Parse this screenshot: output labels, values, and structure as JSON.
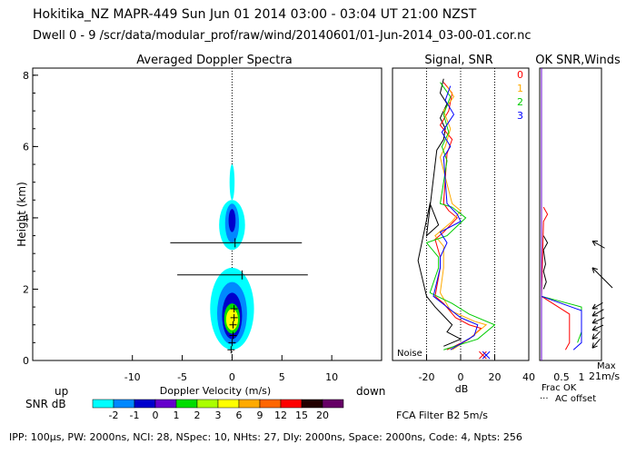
{
  "header": {
    "title_line": "Hokitika_NZ   MAPR-449   Sun Jun 01 2014 03:00 - 03:04 UT 21:00 NZST",
    "dwell_line": "Dwell  0 - 9  /scr/data/modular_prof/raw/wind/20140601/01-Jun-2014_03-00-01.cor.nc"
  },
  "footer": {
    "params": "IPP: 100µs,  PW: 2000ns,  NCI: 28,  NSpec: 10, NHts: 27,  Dly: 2000ns,  Space: 2000ns,  Code: 4,  Npts: 256",
    "fca_filter": "FCA Filter B2   5m/s"
  },
  "colors": {
    "snr_scale": [
      "#00ffff",
      "#0088ff",
      "#0000cc",
      "#6600cc",
      "#00dd00",
      "#aaff00",
      "#ffff00",
      "#ffaa00",
      "#ff6600",
      "#ff0000",
      "#220000",
      "#660066"
    ],
    "dwell_colors": [
      "#ff0000",
      "#ffaa00",
      "#00cc00",
      "#0000ff"
    ]
  },
  "chart_data": [
    {
      "type": "heatmap",
      "title": "Averaged Doppler Spectra",
      "xlabel": "Doppler Velocity (m/s)",
      "ylabel": "Height (km)",
      "xlim": [
        -20,
        15
      ],
      "ylim": [
        0,
        8.2
      ],
      "x_ticks": [
        -10,
        -5,
        0,
        5,
        10
      ],
      "y_ticks": [
        0,
        2,
        4,
        6,
        8
      ],
      "direction_left": "up",
      "direction_right": "down",
      "colorbar_label": "SNR dB",
      "colorbar_ticks": [
        "-2",
        "-1",
        "0",
        "1",
        "2",
        "3",
        "6",
        "9",
        "12",
        "15",
        "20"
      ],
      "error_bars": [
        {
          "height_km": 3.3,
          "center": 0.3,
          "min": -6.2,
          "max": 7.0
        },
        {
          "height_km": 2.4,
          "center": 1.0,
          "min": -5.5,
          "max": 7.6
        }
      ],
      "peak_markers": [
        {
          "height_km": 1.45,
          "velocity": 0.2
        },
        {
          "height_km": 1.2,
          "velocity": 0.2
        },
        {
          "height_km": 1.0,
          "velocity": 0.1
        },
        {
          "height_km": 0.7,
          "velocity": 0.1
        },
        {
          "height_km": 0.5,
          "velocity": 0.0
        },
        {
          "height_km": 0.3,
          "velocity": -0.1
        }
      ]
    },
    {
      "type": "line",
      "title": "Signal, SNR",
      "xlabel": "dB",
      "xlim": [
        -40,
        40
      ],
      "x_ticks": [
        -20,
        0,
        20,
        40
      ],
      "ylim": [
        0,
        8.2
      ],
      "noise_label": "Noise",
      "series": [
        {
          "name": "Signal",
          "color": "#000000",
          "points": [
            [
              -10,
              7.9
            ],
            [
              -12,
              7.5
            ],
            [
              -8,
              7.2
            ],
            [
              -12,
              6.8
            ],
            [
              -9,
              6.5
            ],
            [
              -10,
              6.2
            ],
            [
              -14,
              5.9
            ],
            [
              -20,
              3.5
            ],
            [
              -13,
              3.8
            ],
            [
              -18,
              4.4
            ],
            [
              -25,
              2.8
            ],
            [
              -20,
              1.8
            ],
            [
              -15,
              1.5
            ],
            [
              -5,
              1.0
            ],
            [
              -8,
              0.8
            ],
            [
              0,
              0.6
            ],
            [
              -10,
              0.4
            ]
          ]
        },
        {
          "name": "SNR dwell 0",
          "color": "#ff0000",
          "points": [
            [
              -10,
              7.8
            ],
            [
              -5,
              7.5
            ],
            [
              -7,
              7.0
            ],
            [
              -12,
              6.6
            ],
            [
              -5,
              6.2
            ],
            [
              -8,
              5.8
            ],
            [
              -10,
              4.4
            ],
            [
              -7,
              4.2
            ],
            [
              -2,
              4.0
            ],
            [
              -10,
              3.6
            ],
            [
              -15,
              3.4
            ],
            [
              -12,
              2.9
            ],
            [
              -12,
              2.6
            ],
            [
              -15,
              1.8
            ],
            [
              -10,
              1.6
            ],
            [
              -3,
              1.2
            ],
            [
              5,
              1.0
            ],
            [
              12,
              0.9
            ],
            [
              5,
              0.6
            ],
            [
              -8,
              0.3
            ]
          ]
        },
        {
          "name": "SNR dwell 1",
          "color": "#ffaa00",
          "points": [
            [
              -8,
              7.7
            ],
            [
              -4,
              7.4
            ],
            [
              -10,
              7.0
            ],
            [
              -6,
              6.5
            ],
            [
              -9,
              6.0
            ],
            [
              -12,
              5.7
            ],
            [
              -5,
              4.4
            ],
            [
              0,
              4.2
            ],
            [
              -5,
              3.9
            ],
            [
              -15,
              3.5
            ],
            [
              -10,
              3.2
            ],
            [
              -10,
              2.9
            ],
            [
              -10,
              2.6
            ],
            [
              -12,
              1.9
            ],
            [
              -6,
              1.4
            ],
            [
              8,
              1.1
            ],
            [
              15,
              1.0
            ],
            [
              5,
              0.6
            ],
            [
              -5,
              0.3
            ]
          ]
        },
        {
          "name": "SNR dwell 2",
          "color": "#00cc00",
          "points": [
            [
              -12,
              7.8
            ],
            [
              -6,
              7.4
            ],
            [
              -10,
              6.9
            ],
            [
              -7,
              6.4
            ],
            [
              -11,
              6.0
            ],
            [
              -8,
              5.6
            ],
            [
              -12,
              4.4
            ],
            [
              -5,
              4.3
            ],
            [
              3,
              4.0
            ],
            [
              -8,
              3.5
            ],
            [
              -20,
              3.3
            ],
            [
              -13,
              2.9
            ],
            [
              -13,
              2.6
            ],
            [
              -18,
              1.9
            ],
            [
              -5,
              1.6
            ],
            [
              5,
              1.3
            ],
            [
              20,
              1.0
            ],
            [
              10,
              0.6
            ],
            [
              -10,
              0.3
            ]
          ]
        },
        {
          "name": "SNR dwell 3",
          "color": "#0000ff",
          "points": [
            [
              -6,
              7.7
            ],
            [
              -9,
              7.3
            ],
            [
              -4,
              6.9
            ],
            [
              -11,
              6.4
            ],
            [
              -6,
              6.0
            ],
            [
              -10,
              5.7
            ],
            [
              -8,
              4.4
            ],
            [
              -2,
              4.1
            ],
            [
              0,
              3.9
            ],
            [
              -12,
              3.6
            ],
            [
              -8,
              3.3
            ],
            [
              -12,
              2.9
            ],
            [
              -12,
              2.6
            ],
            [
              -16,
              1.8
            ],
            [
              -8,
              1.5
            ],
            [
              0,
              1.2
            ],
            [
              10,
              1.0
            ],
            [
              8,
              0.7
            ],
            [
              -6,
              0.3
            ]
          ]
        }
      ],
      "markers": [
        {
          "x": 13,
          "height_km": 0.15,
          "symbol": "x",
          "color": "#ff0000"
        },
        {
          "x": 15,
          "height_km": 0.15,
          "symbol": "x",
          "color": "#0000ff"
        }
      ]
    },
    {
      "type": "line",
      "title": "OK SNR,Winds",
      "legend": [
        "0",
        "1",
        "2",
        "3"
      ],
      "xlabel": "Frac OK",
      "x_ticks": [
        "0.5",
        "1"
      ],
      "ac_offset_label": "AC offset",
      "wind_max_label": "Max",
      "wind_max_value": "21m/s",
      "series": [
        {
          "name": "OK black",
          "color": "#000000",
          "points": [
            [
              0.05,
              3.5
            ],
            [
              0.15,
              3.3
            ],
            [
              0.05,
              3.1
            ],
            [
              0.1,
              2.7
            ],
            [
              0.05,
              2.5
            ],
            [
              0.12,
              2.2
            ],
            [
              0.05,
              2.0
            ]
          ]
        },
        {
          "name": "OK red",
          "color": "#ff0000",
          "points": [
            [
              0.05,
              4.3
            ],
            [
              0.15,
              4.1
            ],
            [
              0.05,
              3.9
            ],
            [
              0.0,
              1.8
            ],
            [
              0.7,
              1.3
            ],
            [
              0.7,
              0.5
            ],
            [
              0.6,
              0.3
            ]
          ]
        },
        {
          "name": "OK green",
          "color": "#00cc00",
          "points": [
            [
              0.0,
              1.8
            ],
            [
              1.0,
              1.5
            ],
            [
              1.0,
              0.8
            ],
            [
              0.9,
              0.5
            ]
          ]
        },
        {
          "name": "OK blue",
          "color": "#0000ff",
          "points": [
            [
              0.0,
              1.8
            ],
            [
              1.0,
              1.4
            ],
            [
              1.0,
              0.5
            ],
            [
              0.8,
              0.3
            ]
          ]
        }
      ],
      "wind_barbs": [
        {
          "height_km": 3.35,
          "direction_deg": 120,
          "speed_ms": 8
        },
        {
          "height_km": 2.6,
          "direction_deg": 135,
          "speed_ms": 21
        },
        {
          "height_km": 1.45,
          "direction_deg": 60,
          "speed_ms": 6
        },
        {
          "height_km": 1.25,
          "direction_deg": 60,
          "speed_ms": 7
        },
        {
          "height_km": 1.05,
          "direction_deg": 65,
          "speed_ms": 7
        },
        {
          "height_km": 0.85,
          "direction_deg": 65,
          "speed_ms": 6
        },
        {
          "height_km": 0.6,
          "direction_deg": 45,
          "speed_ms": 5
        },
        {
          "height_km": 0.35,
          "direction_deg": 40,
          "speed_ms": 6
        }
      ]
    }
  ]
}
